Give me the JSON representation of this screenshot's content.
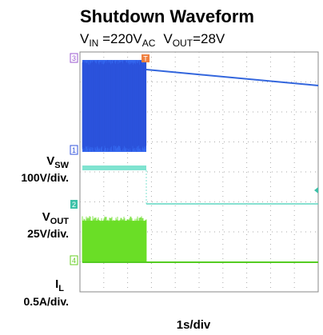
{
  "scope": {
    "title": "Shutdown Waveform",
    "subtitle": {
      "v1": "V",
      "v1_sub": "IN",
      "v1_rest": " =220V",
      "v1_unit_sub": "AC",
      "v2": "V",
      "v2_sub": "OUT",
      "v2_rest": "=28V"
    },
    "channels": [
      {
        "marker": "3"
      },
      {
        "marker": "1",
        "label": "V",
        "label_sub": "SW",
        "scale": "100V/div."
      },
      {
        "marker": "2",
        "label": "V",
        "label_sub": "OUT",
        "scale": "25V/div."
      },
      {
        "marker": "4",
        "label": "I",
        "label_sub": "L",
        "scale": "0.5A/div."
      }
    ],
    "trigger": "T",
    "timebase": "1s/div"
  }
}
